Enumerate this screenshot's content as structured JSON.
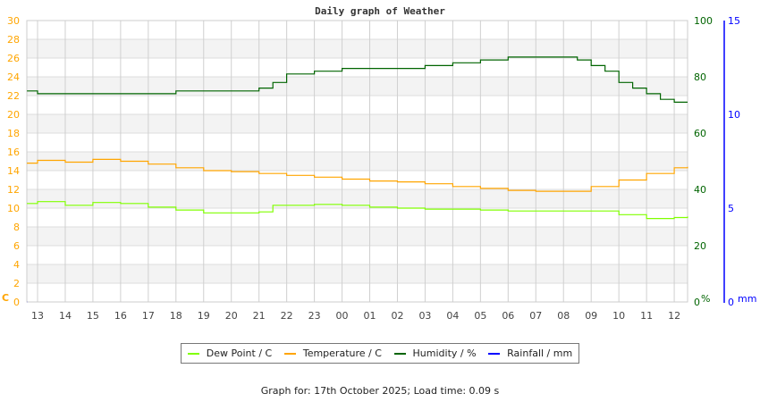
{
  "chart_data": {
    "type": "line",
    "title": "Daily graph of Weather",
    "x_ticks": [
      "13",
      "14",
      "15",
      "16",
      "17",
      "18",
      "19",
      "20",
      "21",
      "22",
      "23",
      "00",
      "01",
      "02",
      "03",
      "04",
      "05",
      "06",
      "07",
      "08",
      "09",
      "10",
      "11",
      "12"
    ],
    "x_range": [
      "12:37",
      "12:29"
    ],
    "left_axis": {
      "label": "C",
      "range": [
        0,
        30
      ],
      "ticks": [
        0,
        2,
        4,
        6,
        8,
        10,
        12,
        14,
        16,
        18,
        20,
        22,
        24,
        26,
        28,
        30
      ],
      "color": "#ffa500"
    },
    "right_axis": {
      "label": "%",
      "range": [
        0,
        100
      ],
      "ticks": [
        0,
        20,
        40,
        60,
        80,
        100
      ],
      "color": "#006400"
    },
    "rain_axis": {
      "label": "mm",
      "range": [
        0,
        15
      ],
      "ticks": [
        0,
        5,
        10,
        15
      ],
      "color": "#0000ff"
    },
    "grid": true,
    "legend_position": "bottom",
    "series": [
      {
        "name": "Dew Point / C",
        "axis": "left",
        "color": "#80ff00",
        "x": [
          "12:37",
          "13:00",
          "14:00",
          "15:00",
          "16:00",
          "17:00",
          "18:00",
          "19:00",
          "20:00",
          "21:00",
          "21:30",
          "22:00",
          "23:00",
          "00:00",
          "01:00",
          "02:00",
          "03:00",
          "04:00",
          "05:00",
          "06:00",
          "07:00",
          "08:00",
          "09:00",
          "10:00",
          "11:00",
          "12:00",
          "12:29"
        ],
        "values": [
          10.5,
          10.7,
          10.3,
          10.6,
          10.5,
          10.1,
          9.8,
          9.5,
          9.5,
          9.6,
          10.3,
          10.3,
          10.4,
          10.3,
          10.1,
          10.0,
          9.9,
          9.9,
          9.8,
          9.7,
          9.7,
          9.7,
          9.7,
          9.3,
          8.9,
          9.0,
          9.1
        ]
      },
      {
        "name": "Temperature / C",
        "axis": "left",
        "color": "#ffa500",
        "x": [
          "12:37",
          "13:00",
          "14:00",
          "15:00",
          "15:40",
          "16:00",
          "17:00",
          "18:00",
          "19:00",
          "20:00",
          "21:00",
          "22:00",
          "23:00",
          "00:00",
          "01:00",
          "02:00",
          "03:00",
          "04:00",
          "05:00",
          "06:00",
          "07:00",
          "08:00",
          "09:00",
          "10:00",
          "11:00",
          "12:00",
          "12:29"
        ],
        "values": [
          14.8,
          15.1,
          14.9,
          15.2,
          15.2,
          15.0,
          14.7,
          14.3,
          14.0,
          13.9,
          13.7,
          13.5,
          13.3,
          13.1,
          12.9,
          12.8,
          12.6,
          12.3,
          12.1,
          11.9,
          11.8,
          11.8,
          12.3,
          13.0,
          13.7,
          14.3,
          14.4
        ]
      },
      {
        "name": "Humidity / %",
        "axis": "right",
        "color": "#006400",
        "x": [
          "12:37",
          "13:00",
          "14:00",
          "15:00",
          "16:00",
          "17:00",
          "18:00",
          "19:00",
          "20:00",
          "21:00",
          "21:30",
          "22:00",
          "23:00",
          "00:00",
          "01:00",
          "02:00",
          "03:00",
          "04:00",
          "05:00",
          "06:00",
          "07:00",
          "08:00",
          "08:30",
          "09:00",
          "09:30",
          "10:00",
          "10:30",
          "11:00",
          "11:30",
          "12:00",
          "12:29"
        ],
        "values": [
          75,
          74,
          74,
          74,
          74,
          74,
          75,
          75,
          75,
          76,
          78,
          81,
          82,
          83,
          83,
          83,
          84,
          85,
          86,
          87,
          87,
          87,
          86,
          84,
          82,
          78,
          76,
          74,
          72,
          71,
          71
        ]
      },
      {
        "name": "Rainfall / mm",
        "axis": "rain",
        "color": "#0000ff",
        "x": [
          "12:37",
          "12:29"
        ],
        "values": [
          0,
          0
        ]
      }
    ]
  },
  "footer": "Graph for: 17th October 2025; Load time: 0.09 s"
}
